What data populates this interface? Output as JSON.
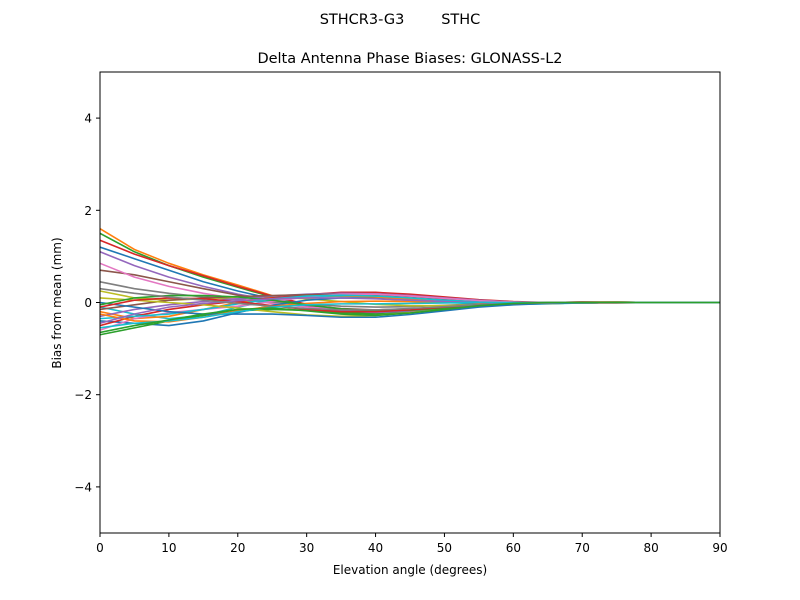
{
  "chart_data": {
    "type": "line",
    "suptitle": "STHCR3-G3        STHC",
    "title": "Delta Antenna Phase Biases: GLONASS-L2",
    "xlabel": "Elevation angle (degrees)",
    "ylabel": "Bias from mean (mm)",
    "xlim": [
      0,
      90
    ],
    "ylim": [
      -5,
      5
    ],
    "xticks": [
      "0",
      "10",
      "20",
      "30",
      "40",
      "50",
      "60",
      "70",
      "80",
      "90"
    ],
    "yticks": [
      "−4",
      "−2",
      "0",
      "2",
      "4"
    ],
    "x": [
      0,
      5,
      10,
      15,
      20,
      25,
      30,
      35,
      40,
      45,
      50,
      55,
      60,
      65,
      70,
      75,
      80,
      85,
      90
    ],
    "series": [
      {
        "color": "#ff7f0e",
        "values": [
          1.6,
          1.15,
          0.85,
          0.6,
          0.38,
          0.15,
          -0.05,
          -0.2,
          -0.25,
          -0.22,
          -0.15,
          -0.08,
          -0.03,
          -0.01,
          0.01,
          0.01,
          0.0,
          0.0,
          0.0
        ]
      },
      {
        "color": "#2ca02c",
        "values": [
          1.5,
          1.1,
          0.8,
          0.55,
          0.33,
          0.12,
          -0.06,
          -0.18,
          -0.22,
          -0.2,
          -0.14,
          -0.07,
          -0.03,
          -0.01,
          0.0,
          0.01,
          0.0,
          0.0,
          0.0
        ]
      },
      {
        "color": "#d62728",
        "values": [
          1.35,
          1.05,
          0.8,
          0.58,
          0.35,
          0.14,
          -0.04,
          -0.16,
          -0.21,
          -0.19,
          -0.13,
          -0.06,
          -0.02,
          0.0,
          0.01,
          0.01,
          0.0,
          0.0,
          0.0
        ]
      },
      {
        "color": "#1f77b4",
        "values": [
          1.2,
          0.95,
          0.7,
          0.45,
          0.25,
          0.08,
          -0.08,
          -0.2,
          -0.24,
          -0.21,
          -0.15,
          -0.08,
          -0.03,
          -0.01,
          0.0,
          0.0,
          0.0,
          0.0,
          0.0
        ]
      },
      {
        "color": "#9467bd",
        "values": [
          1.1,
          0.8,
          0.55,
          0.35,
          0.18,
          0.05,
          -0.08,
          -0.18,
          -0.22,
          -0.19,
          -0.13,
          -0.07,
          -0.03,
          -0.01,
          0.0,
          0.0,
          0.0,
          0.0,
          0.0
        ]
      },
      {
        "color": "#8c564b",
        "values": [
          0.7,
          0.6,
          0.45,
          0.3,
          0.16,
          0.04,
          -0.06,
          -0.13,
          -0.16,
          -0.14,
          -0.1,
          -0.05,
          -0.02,
          0.0,
          0.0,
          0.0,
          0.0,
          0.0,
          0.0
        ]
      },
      {
        "color": "#e377c2",
        "values": [
          0.85,
          0.55,
          0.35,
          0.2,
          0.08,
          -0.02,
          -0.1,
          -0.15,
          -0.17,
          -0.15,
          -0.1,
          -0.05,
          -0.02,
          0.0,
          0.0,
          0.0,
          0.0,
          0.0,
          0.0
        ]
      },
      {
        "color": "#7f7f7f",
        "values": [
          0.45,
          0.3,
          0.2,
          0.12,
          0.06,
          0.01,
          -0.04,
          -0.08,
          -0.1,
          -0.09,
          -0.06,
          -0.03,
          -0.01,
          0.0,
          0.0,
          0.0,
          0.0,
          0.0,
          0.0
        ]
      },
      {
        "color": "#bcbd22",
        "values": [
          0.25,
          0.1,
          0.05,
          0.08,
          0.12,
          0.12,
          0.08,
          0.02,
          -0.04,
          -0.07,
          -0.07,
          -0.05,
          -0.02,
          0.0,
          0.01,
          0.01,
          0.0,
          0.0,
          0.0
        ]
      },
      {
        "color": "#17becf",
        "values": [
          -0.1,
          -0.25,
          -0.35,
          -0.28,
          -0.1,
          0.05,
          0.12,
          0.14,
          0.1,
          0.05,
          0.0,
          -0.03,
          -0.04,
          -0.03,
          -0.01,
          0.0,
          0.0,
          0.0,
          0.0
        ]
      },
      {
        "color": "#1f77b4",
        "values": [
          -0.4,
          -0.45,
          -0.5,
          -0.4,
          -0.22,
          -0.06,
          0.05,
          0.1,
          0.09,
          0.05,
          0.01,
          -0.02,
          -0.03,
          -0.02,
          -0.01,
          0.0,
          0.0,
          0.0,
          0.0
        ]
      },
      {
        "color": "#ff7f0e",
        "values": [
          -0.2,
          -0.35,
          -0.3,
          -0.15,
          0.0,
          0.1,
          0.15,
          0.15,
          0.12,
          0.07,
          0.02,
          -0.01,
          -0.03,
          -0.02,
          -0.01,
          0.0,
          0.0,
          0.0,
          0.0
        ]
      },
      {
        "color": "#2ca02c",
        "values": [
          -0.7,
          -0.55,
          -0.4,
          -0.28,
          -0.18,
          -0.15,
          -0.17,
          -0.22,
          -0.25,
          -0.22,
          -0.15,
          -0.08,
          -0.03,
          -0.01,
          0.0,
          0.0,
          0.0,
          0.0,
          0.0
        ]
      },
      {
        "color": "#d62728",
        "values": [
          -0.5,
          -0.3,
          -0.15,
          -0.05,
          0.03,
          0.1,
          0.17,
          0.22,
          0.22,
          0.18,
          0.12,
          0.06,
          0.02,
          0.0,
          -0.01,
          -0.01,
          0.0,
          0.0,
          0.0
        ]
      },
      {
        "color": "#9467bd",
        "values": [
          -0.3,
          -0.15,
          -0.05,
          0.02,
          0.08,
          0.14,
          0.18,
          0.2,
          0.19,
          0.15,
          0.1,
          0.05,
          0.01,
          -0.01,
          -0.01,
          0.0,
          0.0,
          0.0,
          0.0
        ]
      },
      {
        "color": "#8c564b",
        "values": [
          -0.15,
          -0.05,
          0.05,
          0.1,
          0.13,
          0.15,
          0.17,
          0.18,
          0.17,
          0.13,
          0.08,
          0.04,
          0.01,
          -0.01,
          -0.01,
          0.0,
          0.0,
          0.0,
          0.0
        ]
      },
      {
        "color": "#e377c2",
        "values": [
          -0.6,
          -0.35,
          -0.22,
          -0.15,
          -0.08,
          0.02,
          0.12,
          0.18,
          0.18,
          0.14,
          0.09,
          0.04,
          0.01,
          -0.01,
          -0.01,
          0.0,
          0.0,
          0.0,
          0.0
        ]
      },
      {
        "color": "#17becf",
        "values": [
          -0.35,
          -0.3,
          -0.25,
          -0.15,
          -0.03,
          0.08,
          0.14,
          0.16,
          0.14,
          0.1,
          0.05,
          0.01,
          -0.01,
          -0.02,
          -0.01,
          0.0,
          0.0,
          0.0,
          0.0
        ]
      },
      {
        "color": "#bcbd22",
        "values": [
          0.1,
          0.05,
          0.0,
          -0.05,
          -0.12,
          -0.2,
          -0.27,
          -0.3,
          -0.28,
          -0.22,
          -0.15,
          -0.08,
          -0.04,
          -0.02,
          -0.01,
          0.0,
          0.0,
          0.0,
          0.0
        ]
      },
      {
        "color": "#1f77b4",
        "values": [
          0.0,
          -0.1,
          -0.2,
          -0.25,
          -0.25,
          -0.25,
          -0.28,
          -0.32,
          -0.32,
          -0.26,
          -0.18,
          -0.1,
          -0.05,
          -0.02,
          -0.01,
          0.0,
          0.0,
          0.0,
          0.0
        ]
      },
      {
        "color": "#ff7f0e",
        "values": [
          -0.25,
          -0.4,
          -0.42,
          -0.32,
          -0.18,
          -0.08,
          -0.02,
          0.02,
          0.03,
          0.02,
          0.0,
          -0.01,
          -0.01,
          0.0,
          0.0,
          0.0,
          0.0,
          0.0,
          0.0
        ]
      },
      {
        "color": "#2ca02c",
        "values": [
          -0.05,
          0.1,
          0.15,
          0.15,
          0.12,
          0.05,
          -0.05,
          -0.14,
          -0.18,
          -0.17,
          -0.12,
          -0.06,
          -0.02,
          0.0,
          0.0,
          0.0,
          0.0,
          0.0,
          0.0
        ]
      },
      {
        "color": "#d62728",
        "values": [
          -0.1,
          0.05,
          0.1,
          0.08,
          0.02,
          -0.07,
          -0.15,
          -0.2,
          -0.2,
          -0.16,
          -0.1,
          -0.05,
          -0.02,
          0.0,
          0.01,
          0.0,
          0.0,
          0.0,
          0.0
        ]
      },
      {
        "color": "#9467bd",
        "values": [
          -0.45,
          -0.25,
          -0.1,
          -0.02,
          0.04,
          0.08,
          0.1,
          0.1,
          0.08,
          0.05,
          0.02,
          0.0,
          -0.01,
          -0.01,
          0.0,
          0.0,
          0.0,
          0.0,
          0.0
        ]
      },
      {
        "color": "#7f7f7f",
        "values": [
          0.3,
          0.2,
          0.12,
          0.05,
          -0.02,
          -0.08,
          -0.13,
          -0.16,
          -0.16,
          -0.13,
          -0.09,
          -0.05,
          -0.02,
          -0.01,
          0.0,
          0.0,
          0.0,
          0.0,
          0.0
        ]
      },
      {
        "color": "#17becf",
        "values": [
          -0.55,
          -0.45,
          -0.4,
          -0.32,
          -0.2,
          -0.1,
          -0.05,
          -0.03,
          -0.03,
          -0.02,
          -0.01,
          0.0,
          0.0,
          0.0,
          0.0,
          0.0,
          0.0,
          0.0,
          0.0
        ]
      },
      {
        "color": "#2ca02c",
        "values": [
          -0.65,
          -0.5,
          -0.38,
          -0.25,
          -0.15,
          -0.12,
          -0.18,
          -0.25,
          -0.28,
          -0.23,
          -0.15,
          -0.07,
          -0.02,
          0.0,
          0.0,
          0.0,
          0.0,
          0.0,
          0.0
        ]
      }
    ]
  }
}
